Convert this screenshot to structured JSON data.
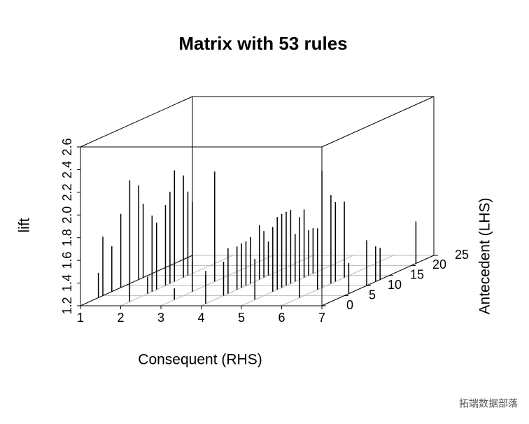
{
  "chart_data": {
    "type": "scatter3d",
    "title": "Matrix with 53 rules",
    "x_label": "Consequent (RHS)",
    "y_label": "Antecedent (LHS)",
    "z_label": "lift",
    "x": [
      1,
      1,
      1,
      1,
      1,
      1,
      2,
      2,
      2,
      2,
      2,
      2,
      2,
      2,
      3,
      3,
      4,
      4,
      4,
      4,
      4,
      4,
      4,
      4,
      5,
      5,
      5,
      5,
      5,
      5,
      5,
      5,
      5,
      5,
      6,
      6,
      6,
      6,
      6,
      7,
      7,
      7,
      7,
      2,
      2,
      4,
      4,
      5,
      7,
      3,
      1,
      6,
      3
    ],
    "y": [
      5,
      7,
      9,
      11,
      13,
      14,
      7,
      8,
      10,
      11,
      12,
      14,
      15,
      16,
      12,
      10,
      6,
      8,
      9,
      10,
      11,
      13,
      14,
      15,
      7,
      8,
      9,
      10,
      11,
      12,
      13,
      14,
      15,
      16,
      8,
      9,
      11,
      12,
      14,
      10,
      12,
      13,
      21,
      2,
      6,
      1,
      5,
      3,
      6,
      7,
      4,
      4,
      3
    ],
    "z": [
      1.72,
      1.6,
      1.85,
      2.11,
      2.03,
      1.85,
      1.87,
      1.79,
      1.91,
      2.01,
      2.18,
      2.1,
      1.94,
      1.83,
      2.17,
      1.33,
      1.6,
      1.58,
      1.59,
      1.59,
      1.61,
      1.68,
      1.61,
      1.5,
      1.77,
      1.84,
      1.85,
      1.85,
      1.85,
      1.62,
      1.75,
      1.8,
      1.6,
      1.6,
      1.74,
      2.23,
      1.98,
      1.9,
      1.87,
      1.6,
      1.51,
      1.48,
      1.57,
      1.36,
      1.35,
      1.45,
      1.5,
      1.56,
      1.47,
      1.48,
      1.42,
      1.48,
      1.3
    ],
    "color": "#000000",
    "xlim": [
      1,
      7
    ],
    "xticks": [
      1,
      2,
      3,
      4,
      5,
      6,
      7
    ],
    "ylim": [
      0,
      25
    ],
    "yticks": [
      0,
      5,
      10,
      15,
      20,
      25
    ],
    "zlim": [
      1.2,
      2.6
    ],
    "zticks": [
      1.2,
      1.4,
      1.6,
      1.8,
      {
        "value": 2,
        "label": "2.0"
      },
      2.2,
      2.4,
      2.6
    ],
    "grid": true
  },
  "watermark": "拓端数据部落"
}
